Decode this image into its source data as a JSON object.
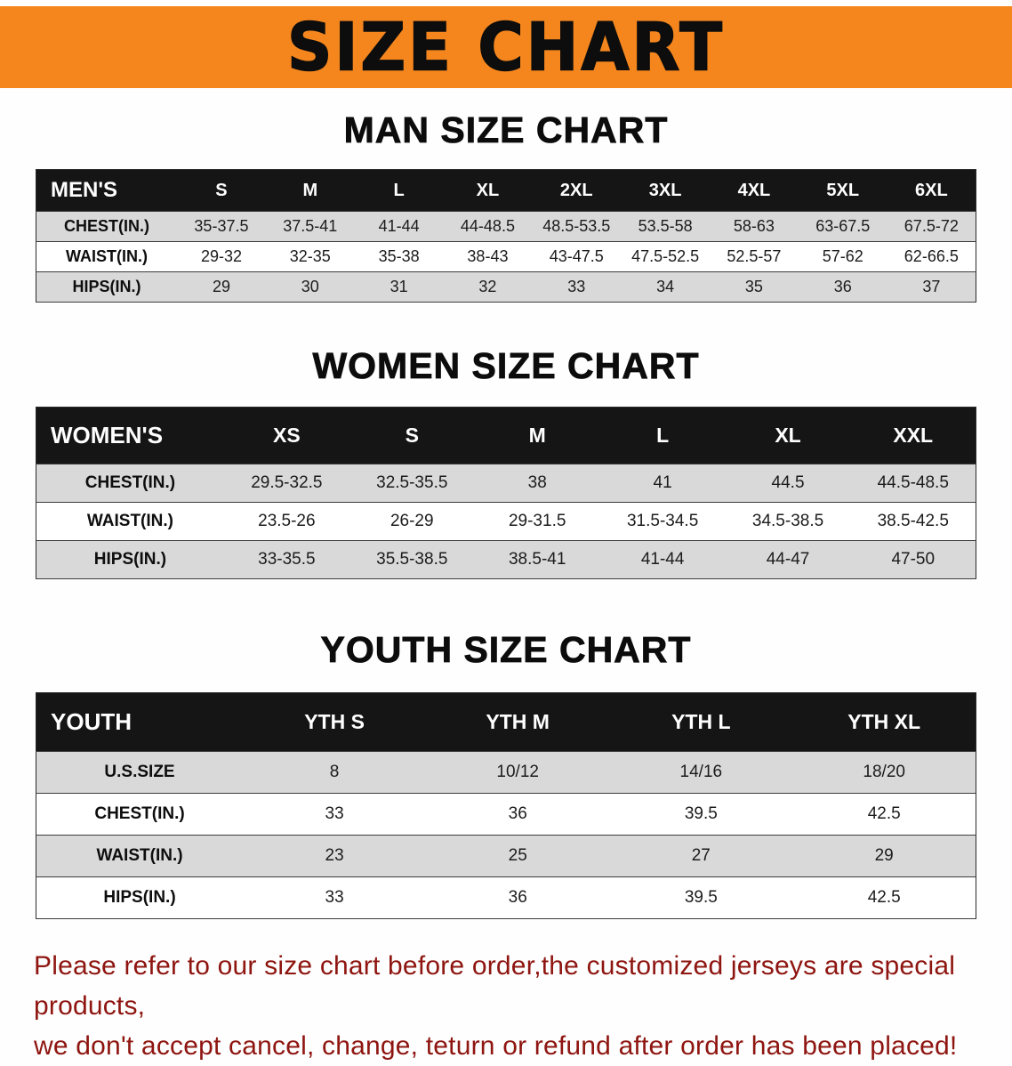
{
  "banner": {
    "title": "SIZE CHART"
  },
  "colors": {
    "banner_orange": "#f5861e",
    "table_header_black": "#151515",
    "row_shade_gray": "#d9d9d9",
    "note_red": "#8e1510"
  },
  "sections": [
    {
      "title": "MAN SIZE CHART",
      "table": {
        "header": [
          "MEN'S",
          "S",
          "M",
          "L",
          "XL",
          "2XL",
          "3XL",
          "4XL",
          "5XL",
          "6XL"
        ],
        "rows": [
          [
            "CHEST(IN.)",
            "35-37.5",
            "37.5-41",
            "41-44",
            "44-48.5",
            "48.5-53.5",
            "53.5-58",
            "58-63",
            "63-67.5",
            "67.5-72"
          ],
          [
            "WAIST(IN.)",
            "29-32",
            "32-35",
            "35-38",
            "38-43",
            "43-47.5",
            "47.5-52.5",
            "52.5-57",
            "57-62",
            "62-66.5"
          ],
          [
            "HIPS(IN.)",
            "29",
            "30",
            "31",
            "32",
            "33",
            "34",
            "35",
            "36",
            "37"
          ]
        ]
      }
    },
    {
      "title": "WOMEN SIZE CHART",
      "table": {
        "header": [
          "WOMEN'S",
          "XS",
          "S",
          "M",
          "L",
          "XL",
          "XXL"
        ],
        "rows": [
          [
            "CHEST(IN.)",
            "29.5-32.5",
            "32.5-35.5",
            "38",
            "41",
            "44.5",
            "44.5-48.5"
          ],
          [
            "WAIST(IN.)",
            "23.5-26",
            "26-29",
            "29-31.5",
            "31.5-34.5",
            "34.5-38.5",
            "38.5-42.5"
          ],
          [
            "HIPS(IN.)",
            "33-35.5",
            "35.5-38.5",
            "38.5-41",
            "41-44",
            "44-47",
            "47-50"
          ]
        ]
      }
    },
    {
      "title": "YOUTH SIZE CHART",
      "table": {
        "header": [
          "YOUTH",
          "YTH S",
          "YTH M",
          "YTH L",
          "YTH XL"
        ],
        "rows": [
          [
            "U.S.SIZE",
            "8",
            "10/12",
            "14/16",
            "18/20"
          ],
          [
            "CHEST(IN.)",
            "33",
            "36",
            "39.5",
            "42.5"
          ],
          [
            "WAIST(IN.)",
            "23",
            "25",
            "27",
            "29"
          ],
          [
            "HIPS(IN.)",
            "33",
            "36",
            "39.5",
            "42.5"
          ]
        ]
      }
    }
  ],
  "footer": {
    "line1": "Please refer to our size chart before order,the customized jerseys are special products,",
    "line2": "we don't accept cancel, change, teturn or refund after order has been placed!"
  }
}
